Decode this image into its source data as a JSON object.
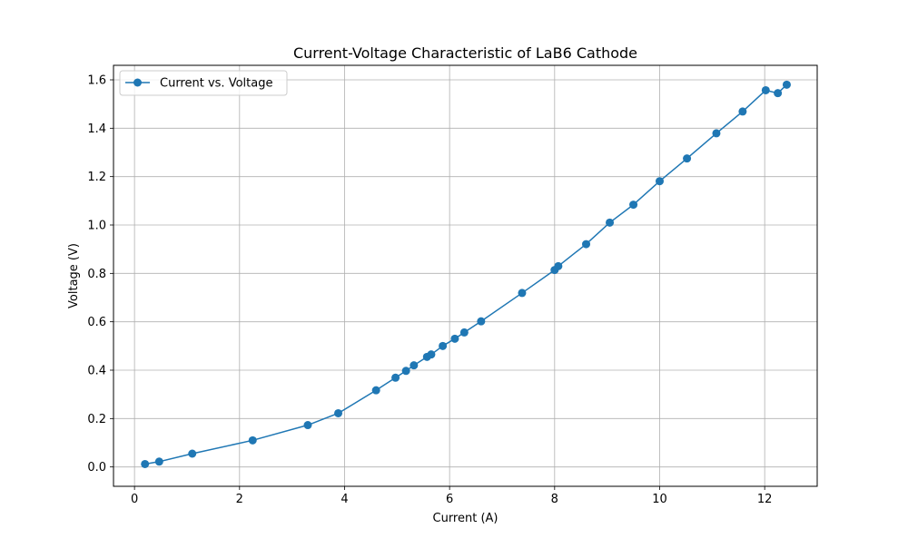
{
  "chart_data": {
    "type": "line",
    "title": "Current-Voltage Characteristic of LaB6 Cathode",
    "xlabel": "Current (A)",
    "ylabel": "Voltage (V)",
    "xlim": [
      -0.4,
      13.0
    ],
    "ylim": [
      -0.08,
      1.66
    ],
    "xticks": [
      0,
      2,
      4,
      6,
      8,
      10,
      12
    ],
    "yticks": [
      0.0,
      0.2,
      0.4,
      0.6,
      0.8,
      1.0,
      1.2,
      1.4,
      1.6
    ],
    "xtick_labels": [
      "0",
      "2",
      "4",
      "6",
      "8",
      "10",
      "12"
    ],
    "ytick_labels": [
      "0.0",
      "0.2",
      "0.4",
      "0.6",
      "0.8",
      "1.0",
      "1.2",
      "1.4",
      "1.6"
    ],
    "grid": true,
    "legend_position": "top-left",
    "series": [
      {
        "name": "Current vs. Voltage",
        "color": "#1f77b4",
        "marker": "circle",
        "x": [
          0.2,
          0.47,
          1.1,
          2.25,
          3.3,
          3.88,
          4.6,
          4.97,
          5.17,
          5.32,
          5.57,
          5.65,
          5.87,
          6.1,
          6.28,
          6.6,
          7.38,
          8.0,
          8.07,
          8.6,
          9.05,
          9.5,
          10.0,
          10.52,
          11.08,
          11.58,
          12.02,
          12.25,
          12.42
        ],
        "y": [
          0.012,
          0.022,
          0.055,
          0.11,
          0.173,
          0.222,
          0.317,
          0.369,
          0.397,
          0.42,
          0.455,
          0.465,
          0.5,
          0.53,
          0.556,
          0.602,
          0.719,
          0.814,
          0.83,
          0.921,
          1.01,
          1.084,
          1.181,
          1.275,
          1.379,
          1.469,
          1.557,
          1.545,
          1.58
        ]
      }
    ]
  }
}
